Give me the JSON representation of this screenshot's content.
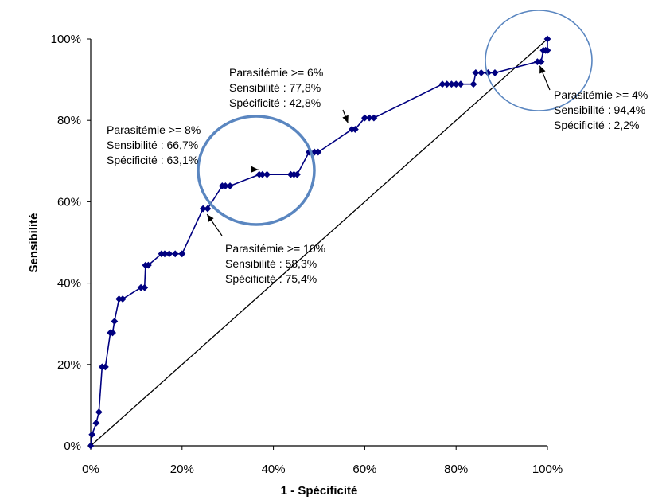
{
  "chart_data": {
    "type": "line",
    "xlabel": "1 - Spécificité",
    "ylabel": "Sensibilité",
    "xlim": [
      0,
      100
    ],
    "ylim": [
      0,
      100
    ],
    "x_ticks": [
      "0%",
      "20%",
      "40%",
      "60%",
      "80%",
      "100%"
    ],
    "y_ticks": [
      "0%",
      "20%",
      "40%",
      "60%",
      "80%",
      "100%"
    ],
    "grid": false,
    "legend": "none",
    "colors": {
      "roc": "#000080",
      "circle": "#5a86c0",
      "diagonal": "#000000"
    },
    "series": [
      {
        "points": [
          [
            0,
            0
          ],
          [
            0.3,
            2.8
          ],
          [
            1.2,
            5.6
          ],
          [
            1.8,
            8.3
          ],
          [
            2.5,
            19.4
          ],
          [
            3.2,
            19.4
          ],
          [
            4.3,
            27.8
          ],
          [
            4.8,
            27.8
          ],
          [
            5.2,
            30.6
          ],
          [
            6.2,
            36.1
          ],
          [
            7.0,
            36.1
          ],
          [
            11.0,
            38.9
          ],
          [
            11.8,
            38.9
          ],
          [
            12.0,
            44.4
          ],
          [
            12.6,
            44.4
          ],
          [
            15.5,
            47.2
          ],
          [
            16.2,
            47.2
          ],
          [
            17.2,
            47.2
          ],
          [
            18.5,
            47.2
          ],
          [
            20.0,
            47.2
          ],
          [
            24.6,
            58.3
          ],
          [
            25.6,
            58.3
          ],
          [
            28.8,
            63.9
          ],
          [
            29.5,
            63.9
          ],
          [
            30.5,
            63.9
          ],
          [
            36.9,
            66.7
          ],
          [
            37.6,
            66.7
          ],
          [
            38.6,
            66.7
          ],
          [
            43.8,
            66.7
          ],
          [
            44.5,
            66.7
          ],
          [
            45.2,
            66.7
          ],
          [
            47.8,
            72.2
          ],
          [
            49.0,
            72.2
          ],
          [
            49.8,
            72.2
          ],
          [
            57.2,
            77.8
          ],
          [
            57.9,
            77.8
          ],
          [
            60.0,
            80.6
          ],
          [
            61.0,
            80.6
          ],
          [
            62.0,
            80.6
          ],
          [
            77.0,
            88.9
          ],
          [
            78.0,
            88.9
          ],
          [
            79.0,
            88.9
          ],
          [
            80.0,
            88.9
          ],
          [
            81.0,
            88.9
          ],
          [
            83.8,
            88.9
          ],
          [
            84.3,
            91.7
          ],
          [
            85.5,
            91.7
          ],
          [
            87.0,
            91.7
          ],
          [
            88.5,
            91.7
          ],
          [
            97.8,
            94.4
          ],
          [
            98.6,
            94.4
          ],
          [
            99.1,
            97.2
          ],
          [
            99.6,
            97.2
          ],
          [
            100,
            97.2
          ],
          [
            100,
            100
          ]
        ]
      }
    ],
    "reference_line": [
      [
        0,
        0
      ],
      [
        100,
        100
      ]
    ],
    "annotations": [
      {
        "lines": [
          "Parasitémie >= 6%",
          "Sensibilité : 77,8%",
          "Spécificité : 42,8%"
        ],
        "point": [
          57.2,
          77.8
        ]
      },
      {
        "lines": [
          "Parasitémie >= 8%",
          "Sensibilité : 66,7%",
          "Spécificité : 63,1%"
        ],
        "point": [
          36.9,
          66.7
        ]
      },
      {
        "lines": [
          "Parasitémie >= 10%",
          "Sensibilité : 58,3%",
          "Spécificité : 75,4%"
        ],
        "point": [
          24.6,
          58.3
        ]
      },
      {
        "lines": [
          "Parasitémie >= 4%",
          "Sensibilité : 94,4%",
          "Spécificité :  2,2%"
        ],
        "point": [
          97.8,
          94.4
        ]
      }
    ]
  }
}
